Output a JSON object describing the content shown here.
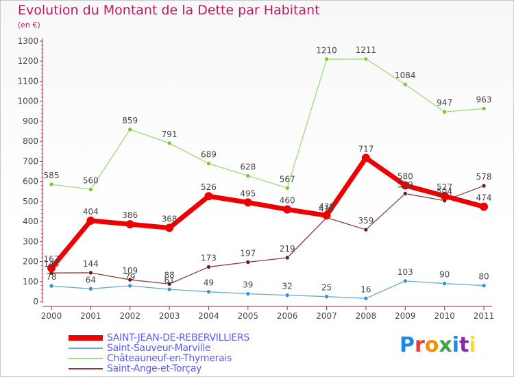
{
  "header": {
    "title": "Evolution du Montant de la Dette par Habitant",
    "unit": "(en €)"
  },
  "logo": {
    "text": "Proxiti",
    "colors": [
      "#1e88e5",
      "#e53935",
      "#fb8c00",
      "#43a047",
      "#1e88e5",
      "#8e24aa",
      "#fdd835"
    ]
  },
  "chart_data": {
    "type": "line",
    "x": [
      "2000",
      "2001",
      "2002",
      "2003",
      "2004",
      "2005",
      "2006",
      "2007",
      "2008",
      "2009",
      "2010",
      "2011"
    ],
    "ylim": [
      0,
      1300
    ],
    "yticks": [
      "0",
      "100",
      "200",
      "300",
      "400",
      "500",
      "600",
      "700",
      "800",
      "900",
      "1000",
      "1100",
      "1200",
      "1300"
    ],
    "grid": false,
    "legend_position": "bottom-left",
    "series": [
      {
        "name": "SAINT-JEAN-DE-REBERVILLIERS",
        "values": [
          167,
          404,
          386,
          368,
          526,
          495,
          460,
          430,
          717,
          580,
          527,
          474
        ],
        "color": "#ee0000",
        "marker": "#ee0000",
        "width": 7
      },
      {
        "name": "Saint-Sauveur-Marville",
        "values": [
          78,
          64,
          79,
          61,
          49,
          39,
          32,
          25,
          16,
          103,
          90,
          80
        ],
        "color": "#6aa7d6",
        "marker": "#3a8fd6",
        "width": 1.3
      },
      {
        "name": "Châteauneuf-en-Thymerais",
        "values": [
          585,
          560,
          859,
          791,
          689,
          628,
          567,
          1210,
          1211,
          1084,
          947,
          963
        ],
        "color": "#99dd77",
        "marker": "#7cc63a",
        "width": 1.3
      },
      {
        "name": "Saint-Ange-et-Torçay",
        "values": [
          143,
          144,
          109,
          88,
          173,
          197,
          219,
          419,
          359,
          539,
          504,
          578
        ],
        "color": "#8b3a3a",
        "marker": "#6b1a1a",
        "width": 1.3
      }
    ],
    "data_labels": [
      [
        "167",
        "404",
        "386",
        "368",
        "526",
        "495",
        "460",
        "430",
        "717",
        "580",
        "527",
        "474"
      ],
      [
        "78",
        "64",
        "79",
        "61",
        "49",
        "39",
        "32",
        "25",
        "16",
        "103",
        "90",
        "80"
      ],
      [
        "585",
        "560",
        "859",
        "791",
        "689",
        "628",
        "567",
        "1210",
        "1211",
        "1084",
        "947",
        "963"
      ],
      [
        "143",
        "144",
        "109",
        "88",
        "173",
        "197",
        "219",
        "419",
        "359",
        "539",
        "504",
        "578"
      ]
    ]
  }
}
